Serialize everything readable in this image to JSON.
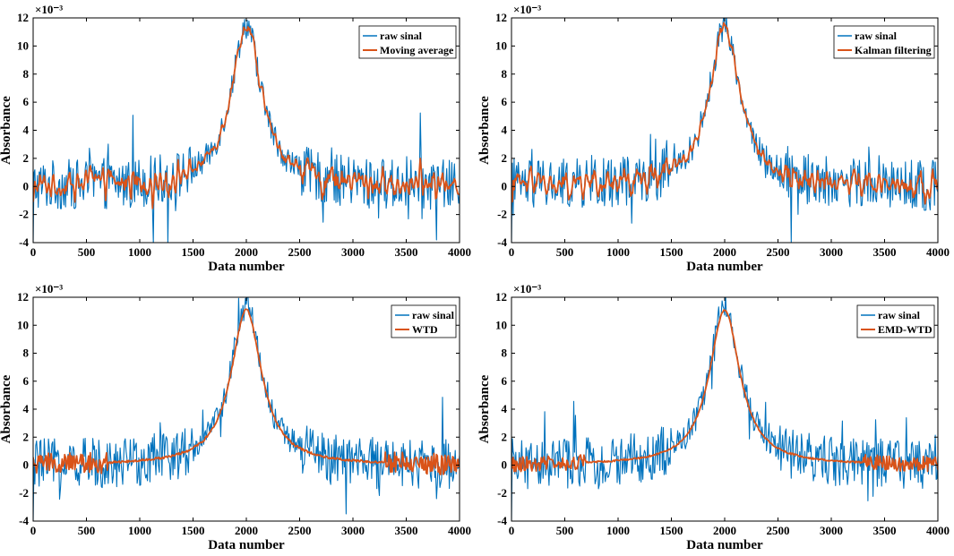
{
  "chart_data": [
    {
      "type": "line",
      "xlabel": "Data number",
      "ylabel": "Absorbance",
      "exponent_label": "×10⁻³",
      "xlim": [
        0,
        4000
      ],
      "ylim": [
        -4,
        12
      ],
      "x_ticks": [
        0,
        500,
        1000,
        1500,
        2000,
        2500,
        3000,
        3500,
        4000
      ],
      "y_ticks": [
        -4,
        -2,
        0,
        2,
        4,
        6,
        8,
        10,
        12
      ],
      "legend_position": "top-right",
      "series": [
        {
          "name": "raw sinal",
          "color": "#0072BD",
          "peak_x": 2000,
          "peak_y": 11.5,
          "noise_amplitude": 1.8
        },
        {
          "name": "Moving average",
          "color": "#D95319",
          "peak_x": 2000,
          "peak_y": 11.2,
          "noise_amplitude": 1.1
        }
      ]
    },
    {
      "type": "line",
      "xlabel": "Data number",
      "ylabel": "Absorbance",
      "exponent_label": "×10⁻³",
      "xlim": [
        0,
        4000
      ],
      "ylim": [
        -4,
        12
      ],
      "x_ticks": [
        0,
        500,
        1000,
        1500,
        2000,
        2500,
        3000,
        3500,
        4000
      ],
      "y_ticks": [
        -4,
        -2,
        0,
        2,
        4,
        6,
        8,
        10,
        12
      ],
      "legend_position": "top-right",
      "series": [
        {
          "name": "raw sinal",
          "color": "#0072BD",
          "peak_x": 2000,
          "peak_y": 11.5,
          "noise_amplitude": 1.8
        },
        {
          "name": "Kalman filtering",
          "color": "#D95319",
          "peak_x": 2000,
          "peak_y": 11.2,
          "noise_amplitude": 1.2
        }
      ]
    },
    {
      "type": "line",
      "xlabel": "Data number",
      "ylabel": "Absorbance",
      "exponent_label": "×10⁻³",
      "xlim": [
        0,
        4000
      ],
      "ylim": [
        -4,
        12
      ],
      "x_ticks": [
        0,
        500,
        1000,
        1500,
        2000,
        2500,
        3000,
        3500,
        4000
      ],
      "y_ticks": [
        -4,
        -2,
        0,
        2,
        4,
        6,
        8,
        10,
        12
      ],
      "legend_position": "top-right",
      "series": [
        {
          "name": "raw sinal",
          "color": "#0072BD",
          "peak_x": 2000,
          "peak_y": 11.5,
          "noise_amplitude": 1.8
        },
        {
          "name": "WTD",
          "color": "#D95319",
          "peak_x": 2000,
          "peak_y": 11.1,
          "noise_amplitude": 0.35
        }
      ]
    },
    {
      "type": "line",
      "xlabel": "Data number",
      "ylabel": "Absorbance",
      "exponent_label": "×10⁻³",
      "xlim": [
        0,
        4000
      ],
      "ylim": [
        -4,
        12
      ],
      "x_ticks": [
        0,
        500,
        1000,
        1500,
        2000,
        2500,
        3000,
        3500,
        4000
      ],
      "y_ticks": [
        -4,
        -2,
        0,
        2,
        4,
        6,
        8,
        10,
        12
      ],
      "legend_position": "top-right",
      "series": [
        {
          "name": "raw sinal",
          "color": "#0072BD",
          "peak_x": 2000,
          "peak_y": 11.5,
          "noise_amplitude": 1.8
        },
        {
          "name": "EMD-WTD",
          "color": "#D95319",
          "peak_x": 2000,
          "peak_y": 11.1,
          "noise_amplitude": 0.25
        }
      ]
    }
  ]
}
